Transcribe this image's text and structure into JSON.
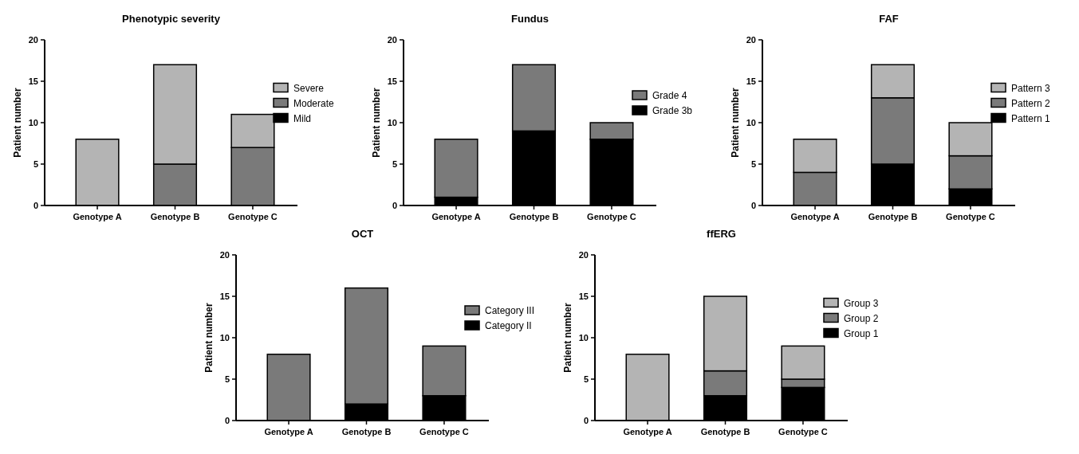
{
  "chart_data": [
    {
      "type": "bar",
      "title": "Phenotypic severity",
      "ylabel": "Patient number",
      "categories": [
        "Genotype A",
        "Genotype B",
        "Genotype C"
      ],
      "stacked": true,
      "legend": "right",
      "ylim": [
        0,
        20
      ],
      "yticks": [
        0,
        5,
        10,
        15,
        20
      ],
      "series": [
        {
          "name": "Mild",
          "color": "#000000",
          "values": [
            0,
            0,
            0
          ]
        },
        {
          "name": "Moderate",
          "color": "#7a7a7a",
          "values": [
            0,
            5,
            7
          ]
        },
        {
          "name": "Severe",
          "color": "#b4b4b4",
          "values": [
            8,
            12,
            4
          ]
        }
      ]
    },
    {
      "type": "bar",
      "title": "Fundus",
      "ylabel": "Patient number",
      "categories": [
        "Genotype A",
        "Genotype B",
        "Genotype C"
      ],
      "stacked": true,
      "legend": "right",
      "ylim": [
        0,
        20
      ],
      "yticks": [
        0,
        5,
        10,
        15,
        20
      ],
      "series": [
        {
          "name": "Grade 3b",
          "color": "#000000",
          "values": [
            1,
            9,
            8
          ]
        },
        {
          "name": "Grade 4",
          "color": "#7a7a7a",
          "values": [
            7,
            8,
            2
          ]
        }
      ]
    },
    {
      "type": "bar",
      "title": "FAF",
      "ylabel": "Patient number",
      "categories": [
        "Genotype A",
        "Genotype B",
        "Genotype C"
      ],
      "stacked": true,
      "legend": "right",
      "ylim": [
        0,
        20
      ],
      "yticks": [
        0,
        5,
        10,
        15,
        20
      ],
      "series": [
        {
          "name": "Pattern 1",
          "color": "#000000",
          "values": [
            0,
            5,
            2
          ]
        },
        {
          "name": "Pattern 2",
          "color": "#7a7a7a",
          "values": [
            4,
            8,
            4
          ]
        },
        {
          "name": "Pattern 3",
          "color": "#b4b4b4",
          "values": [
            4,
            4,
            4
          ]
        }
      ]
    },
    {
      "type": "bar",
      "title": "OCT",
      "ylabel": "Patient number",
      "categories": [
        "Genotype A",
        "Genotype B",
        "Genotype C"
      ],
      "stacked": true,
      "legend": "right",
      "ylim": [
        0,
        20
      ],
      "yticks": [
        0,
        5,
        10,
        15,
        20
      ],
      "series": [
        {
          "name": "Category II",
          "color": "#000000",
          "values": [
            0,
            2,
            3
          ]
        },
        {
          "name": "Category III",
          "color": "#7a7a7a",
          "values": [
            8,
            14,
            6
          ]
        }
      ]
    },
    {
      "type": "bar",
      "title": "ffERG",
      "ylabel": "Patient number",
      "categories": [
        "Genotype A",
        "Genotype B",
        "Genotype C"
      ],
      "stacked": true,
      "legend": "right",
      "ylim": [
        0,
        20
      ],
      "yticks": [
        0,
        5,
        10,
        15,
        20
      ],
      "series": [
        {
          "name": "Group 1",
          "color": "#000000",
          "values": [
            0,
            3,
            4
          ]
        },
        {
          "name": "Group 2",
          "color": "#7a7a7a",
          "values": [
            0,
            3,
            1
          ]
        },
        {
          "name": "Group 3",
          "color": "#b4b4b4",
          "values": [
            8,
            9,
            4
          ]
        }
      ]
    }
  ]
}
